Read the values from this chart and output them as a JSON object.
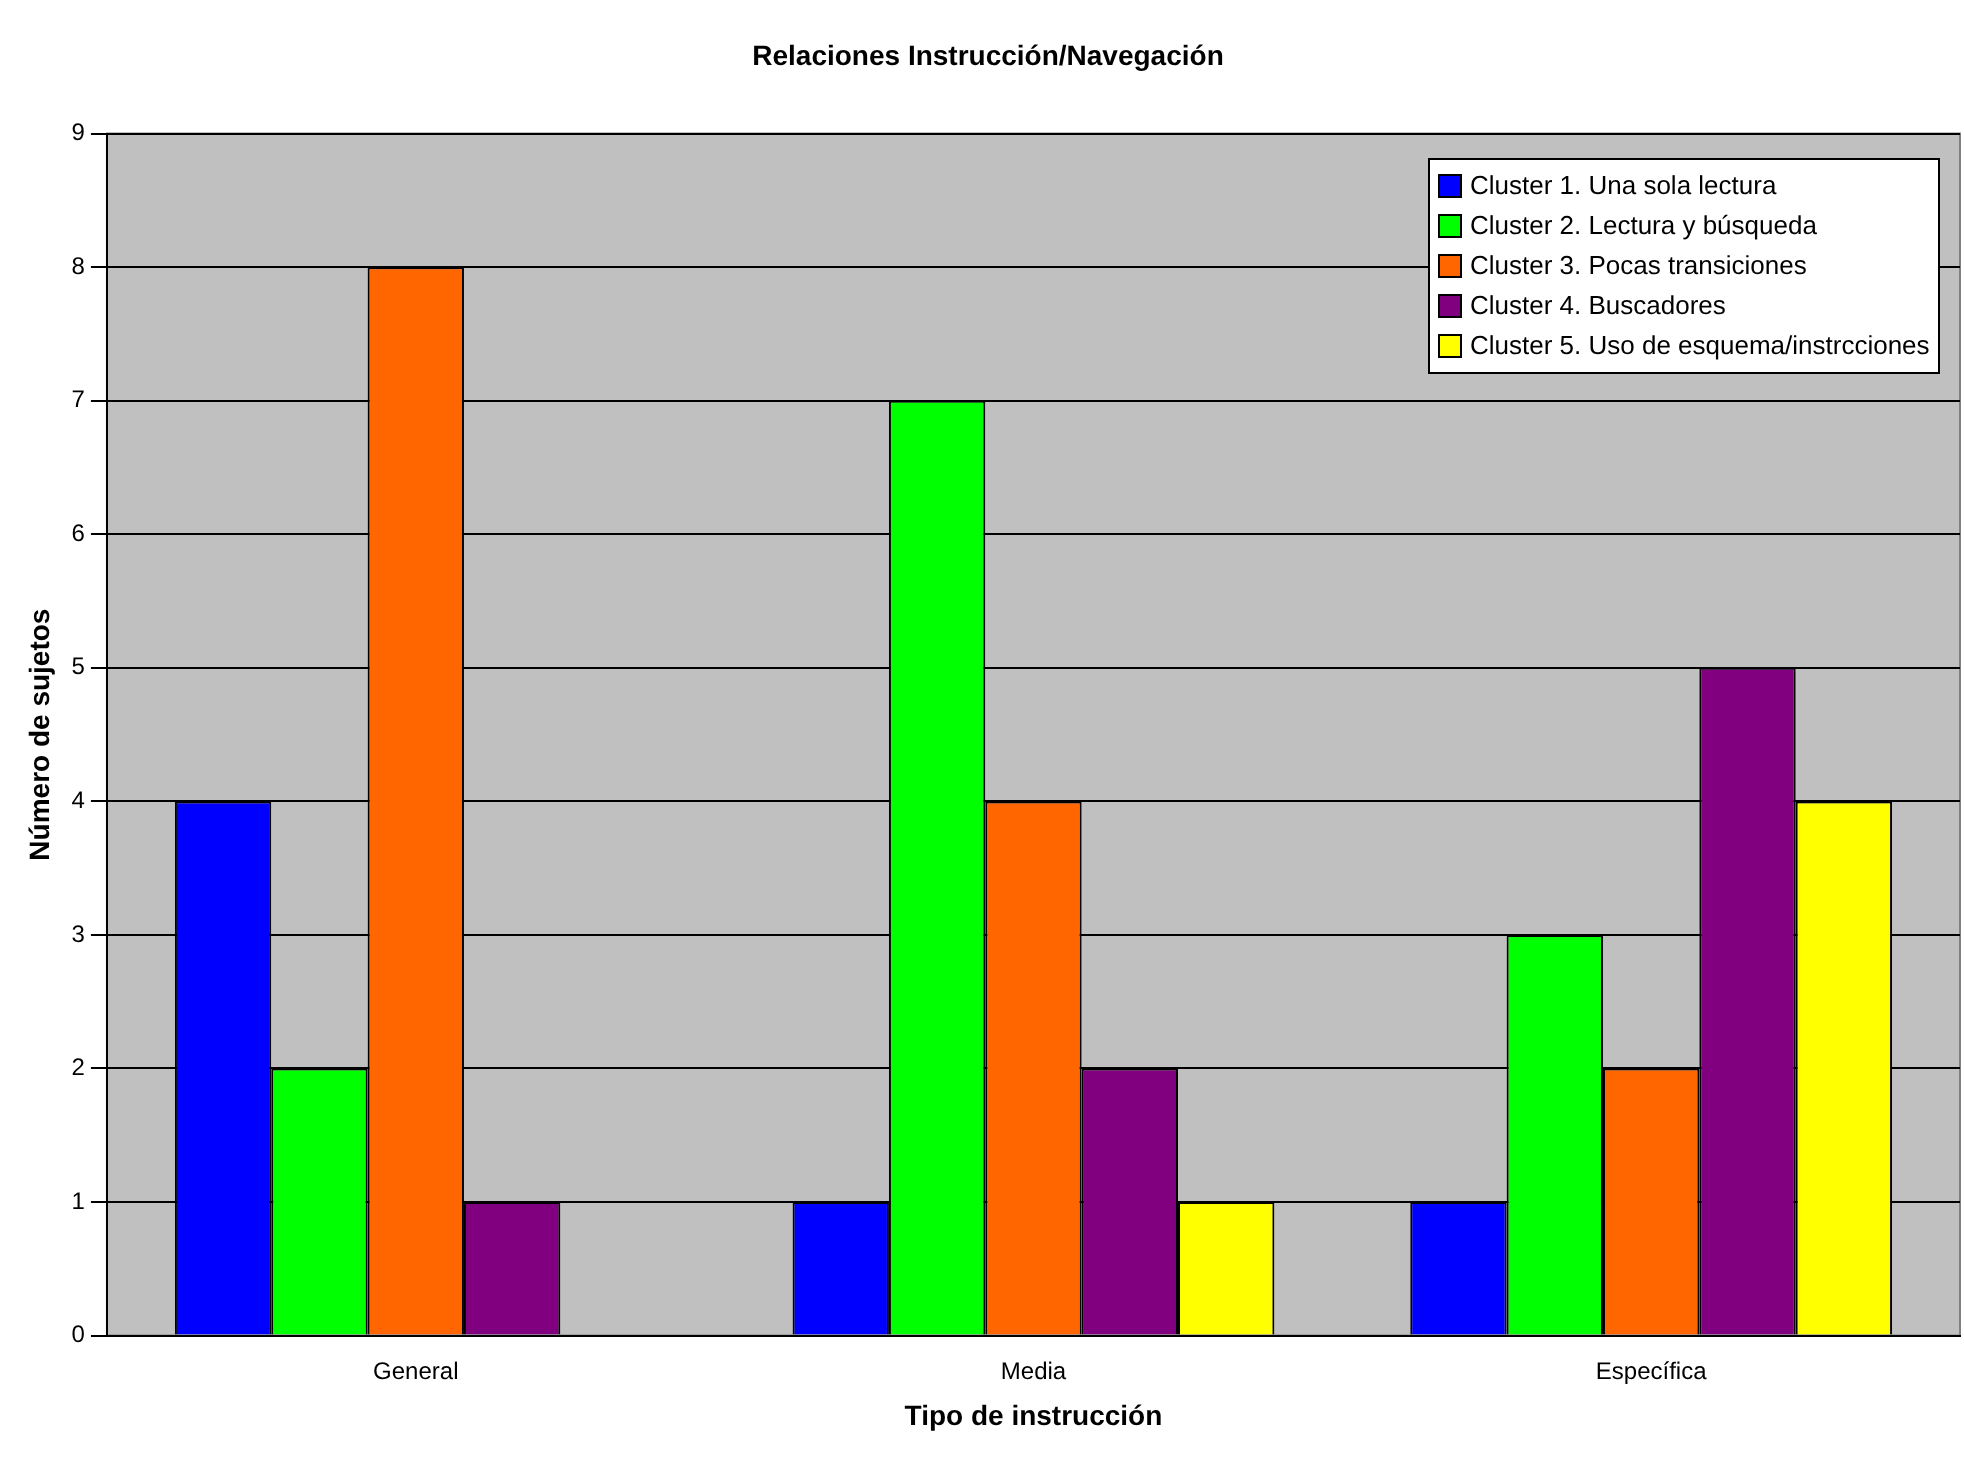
{
  "chart_data": {
    "type": "bar",
    "title": "Relaciones Instrucción/Navegación",
    "xlabel": "Tipo de instrucción",
    "ylabel": "Número de sujetos",
    "categories": [
      "General",
      "Media",
      "Específica"
    ],
    "series": [
      {
        "name": "Cluster 1. Una sola lectura",
        "color": "#0000ff",
        "values": [
          4,
          1,
          1
        ]
      },
      {
        "name": "Cluster 2. Lectura y búsqueda",
        "color": "#00ff00",
        "values": [
          2,
          7,
          3
        ]
      },
      {
        "name": "Cluster 3. Pocas transiciones",
        "color": "#ff6600",
        "values": [
          8,
          4,
          2
        ]
      },
      {
        "name": "Cluster 4. Buscadores",
        "color": "#800080",
        "values": [
          1,
          2,
          5
        ]
      },
      {
        "name": "Cluster 5. Uso de esquema/instrcciones",
        "color": "#ffff00",
        "values": [
          0,
          1,
          4
        ]
      }
    ],
    "ylim": [
      0,
      9
    ],
    "yticks": [
      0,
      1,
      2,
      3,
      4,
      5,
      6,
      7,
      8,
      9
    ],
    "grid": "y",
    "legend": "top right"
  }
}
